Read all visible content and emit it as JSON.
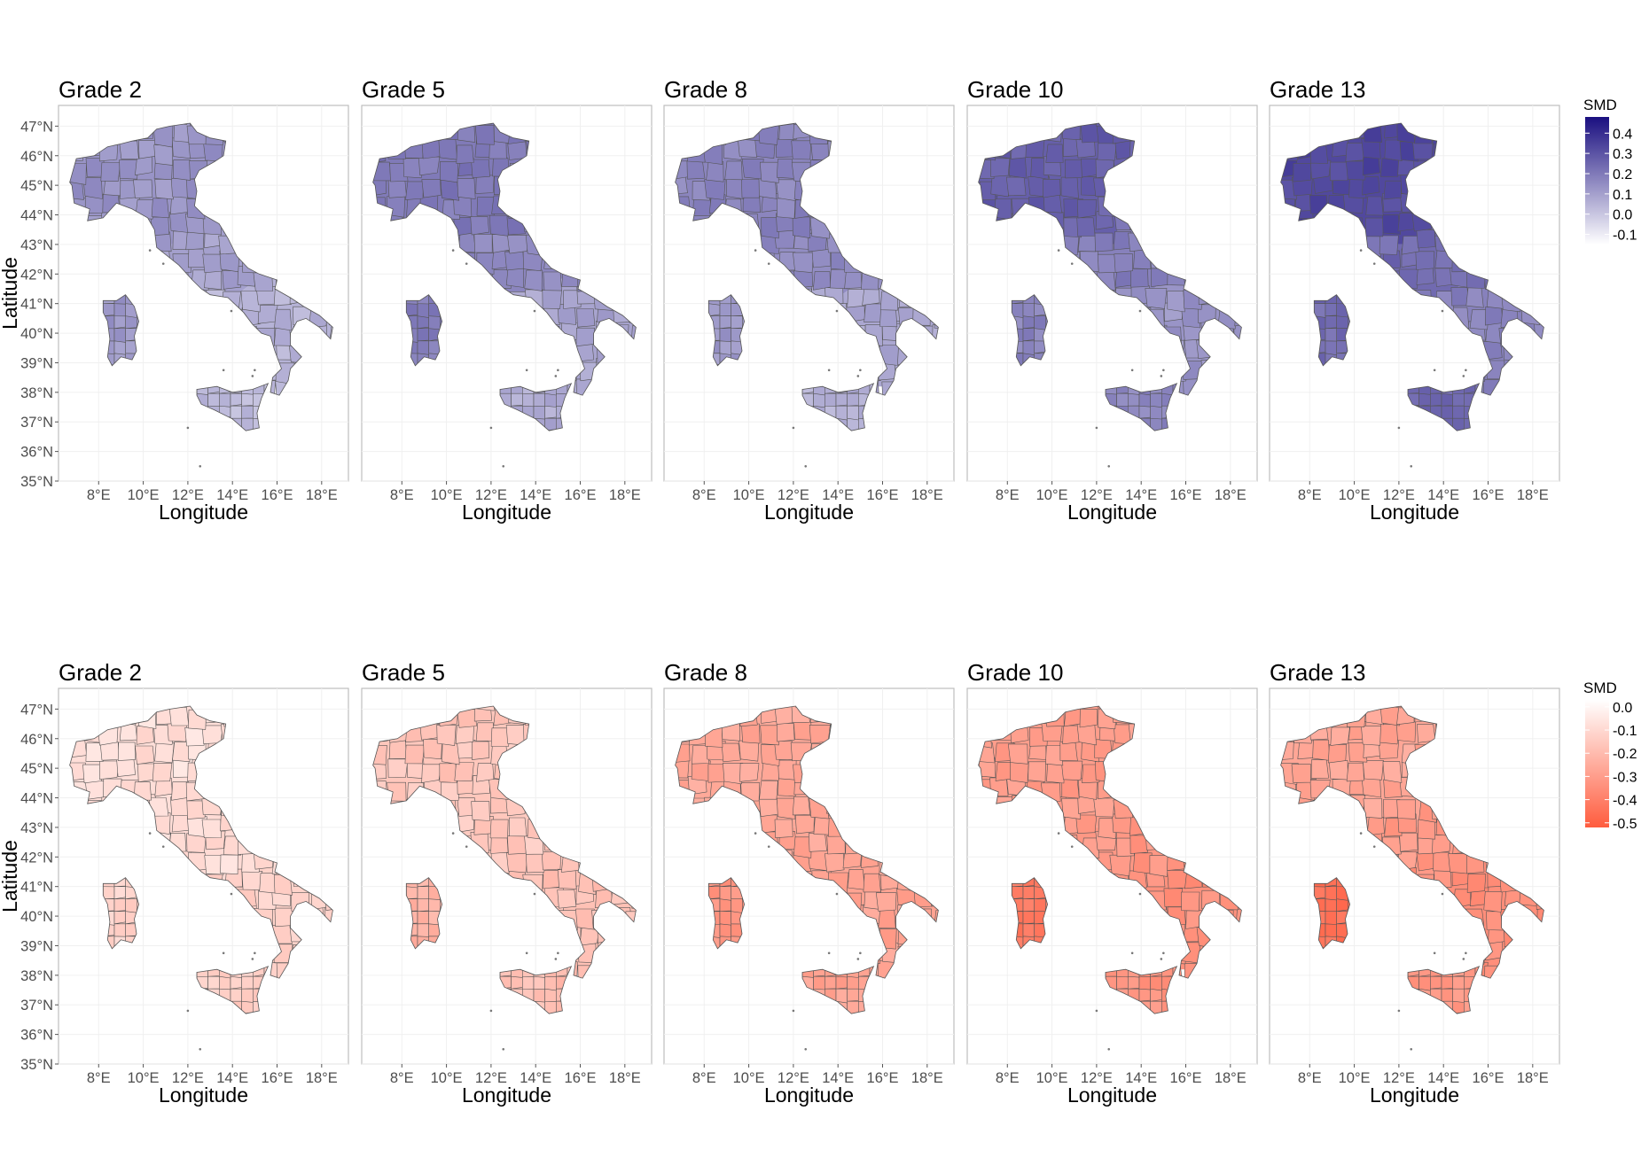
{
  "map": {
    "region": "Italy",
    "xlabel": "Longitude",
    "ylabel": "Latitude",
    "x_ticks": [
      "8°E",
      "10°E",
      "12°E",
      "14°E",
      "16°E",
      "18°E"
    ],
    "y_ticks": [
      "35°N",
      "36°N",
      "37°N",
      "38°N",
      "39°N",
      "40°N",
      "41°N",
      "42°N",
      "43°N",
      "44°N",
      "45°N",
      "46°N",
      "47°N"
    ],
    "x_tick_values": [
      8,
      10,
      12,
      14,
      16,
      18
    ],
    "y_tick_values": [
      35,
      36,
      37,
      38,
      39,
      40,
      41,
      42,
      43,
      44,
      45,
      46,
      47
    ],
    "lon_range": [
      6.2,
      19.2
    ],
    "lat_range": [
      35,
      47.7
    ]
  },
  "rows": [
    {
      "legend": {
        "title": "SMD",
        "ticks": [
          "0.4",
          "0.3",
          "0.2",
          "0.1",
          "0.0",
          "-0.1"
        ],
        "tick_values": [
          0.4,
          0.3,
          0.2,
          0.1,
          0.0,
          -0.1
        ],
        "range": [
          -0.15,
          0.48
        ],
        "color_low": "#ffffff",
        "color_high": "#1a0f80"
      },
      "panels": [
        {
          "title": "Grade 2",
          "north": 0.13,
          "center": 0.1,
          "south": 0.05,
          "sardinia": 0.12,
          "sicily": 0.03
        },
        {
          "title": "Grade 5",
          "north": 0.2,
          "center": 0.17,
          "south": 0.09,
          "sardinia": 0.19,
          "sicily": 0.07
        },
        {
          "title": "Grade 8",
          "north": 0.17,
          "center": 0.15,
          "south": 0.08,
          "sardinia": 0.12,
          "sicily": 0.06
        },
        {
          "title": "Grade 10",
          "north": 0.27,
          "center": 0.18,
          "south": 0.13,
          "sardinia": 0.17,
          "sicily": 0.17
        },
        {
          "title": "Grade 13",
          "north": 0.33,
          "center": 0.24,
          "south": 0.18,
          "sardinia": 0.24,
          "sicily": 0.25
        }
      ]
    },
    {
      "legend": {
        "title": "SMD",
        "ticks": [
          "0.0",
          "-0.1",
          "-0.2",
          "-0.3",
          "-0.4",
          "-0.5"
        ],
        "tick_values": [
          0.0,
          -0.1,
          -0.2,
          -0.3,
          -0.4,
          -0.5
        ],
        "range": [
          -0.52,
          0.03
        ],
        "color_low": "#ff5c3e",
        "color_high": "#ffffff"
      },
      "panels": [
        {
          "title": "Grade 2",
          "north": -0.08,
          "center": -0.09,
          "south": -0.12,
          "sardinia": -0.12,
          "sicily": -0.14
        },
        {
          "title": "Grade 5",
          "north": -0.16,
          "center": -0.15,
          "south": -0.18,
          "sardinia": -0.23,
          "sicily": -0.19
        },
        {
          "title": "Grade 8",
          "north": -0.26,
          "center": -0.27,
          "south": -0.28,
          "sardinia": -0.33,
          "sicily": -0.28
        },
        {
          "title": "Grade 10",
          "north": -0.3,
          "center": -0.32,
          "south": -0.34,
          "sardinia": -0.42,
          "sicily": -0.33
        },
        {
          "title": "Grade 13",
          "north": -0.27,
          "center": -0.31,
          "south": -0.35,
          "sardinia": -0.45,
          "sicily": -0.32
        }
      ]
    }
  ]
}
